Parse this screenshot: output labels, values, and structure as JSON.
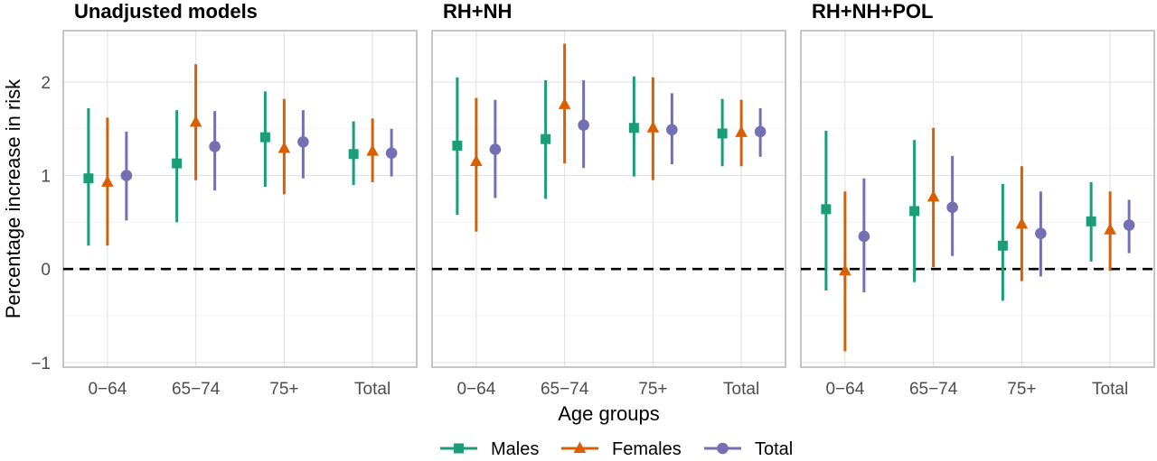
{
  "chart_data": {
    "type": "scatter",
    "xlabel": "Age groups",
    "ylabel": "Percentage increase in risk",
    "ylim": [
      -1.05,
      2.55
    ],
    "yticks": [
      -1,
      0,
      1,
      2
    ],
    "ytick_labels": [
      "−1",
      "0",
      "1",
      "2"
    ],
    "categories": [
      "0−64",
      "65−74",
      "75+",
      "Total"
    ],
    "reference_line": 0,
    "grid": true,
    "legend_position": "bottom",
    "colors": {
      "Males": "#1b9e77",
      "Females": "#d95f02",
      "Total": "#7570b3"
    },
    "markers": {
      "Males": "square",
      "Females": "triangle",
      "Total": "circle"
    },
    "panels": [
      {
        "title": "Unadjusted models",
        "series": [
          {
            "name": "Males",
            "estimate": [
              0.97,
              1.13,
              1.41,
              1.23
            ],
            "lower": [
              0.25,
              0.5,
              0.88,
              0.9
            ],
            "upper": [
              1.72,
              1.7,
              1.9,
              1.58
            ]
          },
          {
            "name": "Females",
            "estimate": [
              0.93,
              1.57,
              1.29,
              1.26
            ],
            "lower": [
              0.25,
              0.95,
              0.8,
              0.93
            ],
            "upper": [
              1.62,
              2.19,
              1.82,
              1.61
            ]
          },
          {
            "name": "Total",
            "estimate": [
              1.0,
              1.31,
              1.36,
              1.24
            ],
            "lower": [
              0.52,
              0.84,
              0.97,
              0.99
            ],
            "upper": [
              1.47,
              1.69,
              1.7,
              1.5
            ]
          }
        ]
      },
      {
        "title": "RH+NH",
        "series": [
          {
            "name": "Males",
            "estimate": [
              1.32,
              1.39,
              1.51,
              1.45
            ],
            "lower": [
              0.58,
              0.75,
              0.99,
              1.1
            ],
            "upper": [
              2.05,
              2.02,
              2.06,
              1.82
            ]
          },
          {
            "name": "Females",
            "estimate": [
              1.15,
              1.76,
              1.51,
              1.46
            ],
            "lower": [
              0.4,
              1.13,
              0.95,
              1.1
            ],
            "upper": [
              1.83,
              2.41,
              2.05,
              1.81
            ]
          },
          {
            "name": "Total",
            "estimate": [
              1.28,
              1.54,
              1.49,
              1.47
            ],
            "lower": [
              0.76,
              1.08,
              1.12,
              1.2
            ],
            "upper": [
              1.81,
              2.02,
              1.88,
              1.72
            ]
          }
        ]
      },
      {
        "title": "RH+NH+POL",
        "series": [
          {
            "name": "Males",
            "estimate": [
              0.64,
              0.62,
              0.25,
              0.51
            ],
            "lower": [
              -0.23,
              -0.14,
              -0.34,
              0.08
            ],
            "upper": [
              1.48,
              1.38,
              0.91,
              0.93
            ]
          },
          {
            "name": "Females",
            "estimate": [
              -0.02,
              0.77,
              0.48,
              0.42
            ],
            "lower": [
              -0.88,
              0.02,
              -0.13,
              -0.02
            ],
            "upper": [
              0.83,
              1.51,
              1.1,
              0.83
            ]
          },
          {
            "name": "Total",
            "estimate": [
              0.35,
              0.66,
              0.38,
              0.47
            ],
            "lower": [
              -0.25,
              0.14,
              -0.08,
              0.17
            ],
            "upper": [
              0.97,
              1.21,
              0.83,
              0.74
            ]
          }
        ]
      }
    ]
  }
}
